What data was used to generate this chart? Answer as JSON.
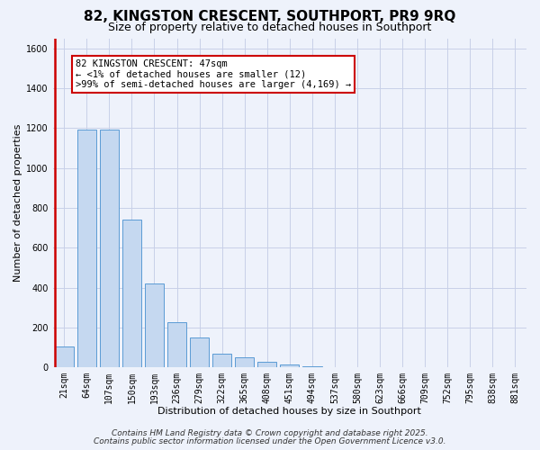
{
  "title": "82, KINGSTON CRESCENT, SOUTHPORT, PR9 9RQ",
  "subtitle": "Size of property relative to detached houses in Southport",
  "xlabel": "Distribution of detached houses by size in Southport",
  "ylabel": "Number of detached properties",
  "bar_labels": [
    "21sqm",
    "64sqm",
    "107sqm",
    "150sqm",
    "193sqm",
    "236sqm",
    "279sqm",
    "322sqm",
    "365sqm",
    "408sqm",
    "451sqm",
    "494sqm",
    "537sqm",
    "580sqm",
    "623sqm",
    "666sqm",
    "709sqm",
    "752sqm",
    "795sqm",
    "838sqm",
    "881sqm"
  ],
  "bar_values": [
    105,
    1190,
    1190,
    740,
    420,
    225,
    150,
    70,
    50,
    30,
    15,
    5,
    2,
    1,
    0,
    0,
    0,
    0,
    0,
    0,
    0
  ],
  "bar_color": "#c5d8f0",
  "bar_edge_color": "#5b9bd5",
  "annotation_title": "82 KINGSTON CRESCENT: 47sqm",
  "annotation_line1": "← <1% of detached houses are smaller (12)",
  "annotation_line2": ">99% of semi-detached houses are larger (4,169) →",
  "annotation_box_color": "#ffffff",
  "annotation_box_edge": "#cc0000",
  "red_line_color": "#cc0000",
  "ylim": [
    0,
    1650
  ],
  "yticks": [
    0,
    200,
    400,
    600,
    800,
    1000,
    1200,
    1400,
    1600
  ],
  "bg_color": "#eef2fb",
  "plot_bg_color": "#eef2fb",
  "grid_color": "#c8d0e8",
  "footer1": "Contains HM Land Registry data © Crown copyright and database right 2025.",
  "footer2": "Contains public sector information licensed under the Open Government Licence v3.0.",
  "title_fontsize": 11,
  "subtitle_fontsize": 9,
  "axis_label_fontsize": 8,
  "tick_fontsize": 7,
  "annotation_fontsize": 7.5,
  "footer_fontsize": 6.5
}
